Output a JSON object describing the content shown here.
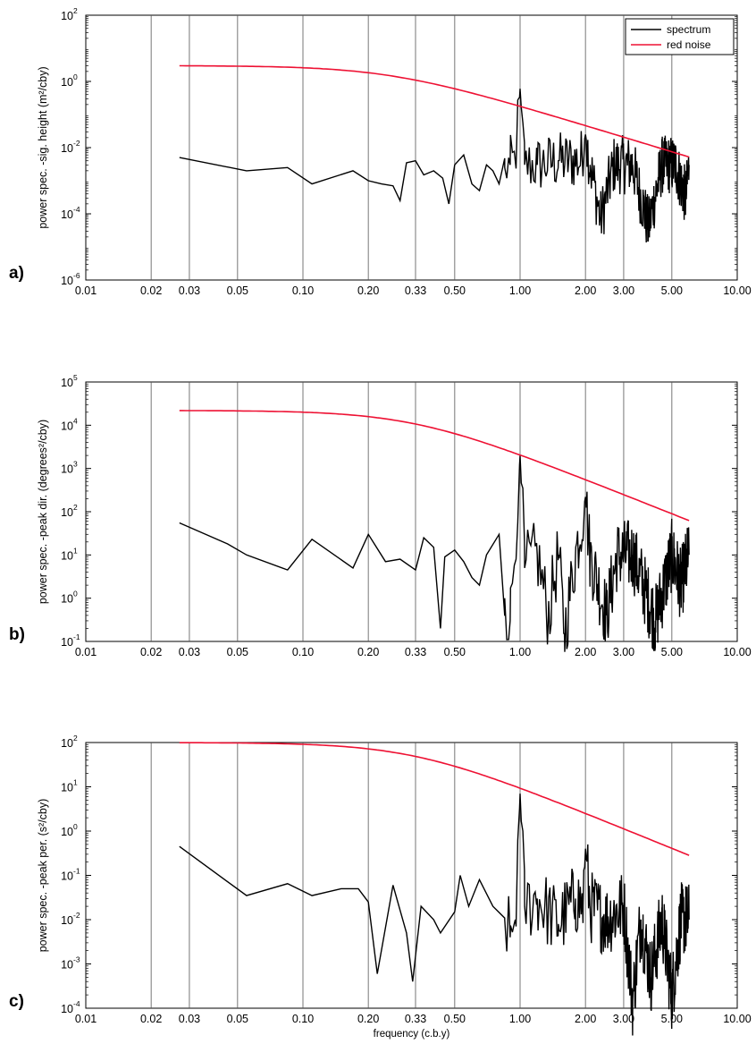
{
  "chart_data": [
    {
      "type": "line",
      "panel_label": "a)",
      "ylabel": "power spec. -sig. height (m²/cby)",
      "xlabel": "",
      "xscale": "log",
      "yscale": "log",
      "xlim": [
        0.01,
        10
      ],
      "ylim": [
        1e-06,
        100
      ],
      "x_ticks": [
        "0.01",
        "0.02",
        "0.03",
        "0.05",
        "0.10",
        "0.20",
        "0.33",
        "0.50",
        "1.00",
        "2.00",
        "3.00",
        "5.00",
        "10.00"
      ],
      "y_ticks": [
        {
          "base": "10",
          "exp": "-6"
        },
        {
          "base": "10",
          "exp": "-4"
        },
        {
          "base": "10",
          "exp": "-2"
        },
        {
          "base": "10",
          "exp": "0"
        },
        {
          "base": "10",
          "exp": "2"
        }
      ],
      "grid": "vertical lines at x ticks",
      "legend": {
        "position": "top-right",
        "entries": [
          "spectrum",
          "red noise"
        ]
      },
      "series": [
        {
          "name": "spectrum",
          "color": "#000000",
          "noise_amp": 0.9,
          "points": [
            [
              0.027,
              0.005
            ],
            [
              0.055,
              0.002
            ],
            [
              0.085,
              0.0025
            ],
            [
              0.11,
              0.0008
            ],
            [
              0.17,
              0.002
            ],
            [
              0.2,
              0.001
            ],
            [
              0.23,
              0.0008
            ],
            [
              0.26,
              0.0007
            ],
            [
              0.28,
              0.00025
            ],
            [
              0.3,
              0.0035
            ],
            [
              0.33,
              0.004
            ],
            [
              0.36,
              0.0015
            ],
            [
              0.4,
              0.002
            ],
            [
              0.44,
              0.0012
            ],
            [
              0.47,
              0.0002
            ],
            [
              0.5,
              0.003
            ],
            [
              0.55,
              0.006
            ],
            [
              0.6,
              0.0008
            ],
            [
              0.65,
              0.0005
            ],
            [
              0.7,
              0.003
            ],
            [
              0.75,
              0.002
            ],
            [
              0.8,
              0.0008
            ],
            [
              0.85,
              0.0025
            ],
            [
              0.9,
              0.003
            ],
            [
              0.95,
              0.004
            ],
            [
              1.0,
              0.6
            ],
            [
              1.05,
              0.003
            ],
            [
              1.2,
              0.003
            ],
            [
              1.5,
              0.004
            ],
            [
              1.9,
              0.004
            ],
            [
              2.0,
              0.025
            ],
            [
              2.1,
              0.003
            ],
            [
              2.35,
              7e-05
            ],
            [
              2.7,
              0.003
            ],
            [
              3.3,
              0.003
            ],
            [
              3.9,
              4e-05
            ],
            [
              4.5,
              0.003
            ],
            [
              5.2,
              0.003
            ],
            [
              5.8,
              0.0003
            ],
            [
              6.0,
              0.003
            ]
          ]
        },
        {
          "name": "red noise",
          "color": "#ee1133",
          "model": {
            "a": 3.0,
            "fc": 0.25,
            "n": 2.0
          }
        }
      ]
    },
    {
      "type": "line",
      "panel_label": "b)",
      "ylabel": "power spec. -peak dir. (degrees²/cby)",
      "xlabel": "",
      "xscale": "log",
      "yscale": "log",
      "xlim": [
        0.01,
        10
      ],
      "ylim": [
        0.1,
        100000
      ],
      "x_ticks": [
        "0.01",
        "0.02",
        "0.03",
        "0.05",
        "0.10",
        "0.20",
        "0.33",
        "0.50",
        "1.00",
        "2.00",
        "3.00",
        "5.00",
        "10.00"
      ],
      "y_ticks": [
        {
          "base": "10",
          "exp": "-1"
        },
        {
          "base": "10",
          "exp": "0"
        },
        {
          "base": "10",
          "exp": "1"
        },
        {
          "base": "10",
          "exp": "2"
        },
        {
          "base": "10",
          "exp": "3"
        },
        {
          "base": "10",
          "exp": "4"
        },
        {
          "base": "10",
          "exp": "5"
        }
      ],
      "grid": "vertical lines at x ticks",
      "series": [
        {
          "name": "spectrum",
          "color": "#000000",
          "noise_amp": 0.85,
          "points": [
            [
              0.027,
              55
            ],
            [
              0.045,
              18
            ],
            [
              0.055,
              10
            ],
            [
              0.085,
              4.5
            ],
            [
              0.11,
              23
            ],
            [
              0.17,
              5
            ],
            [
              0.2,
              30
            ],
            [
              0.24,
              7
            ],
            [
              0.28,
              8
            ],
            [
              0.33,
              4.5
            ],
            [
              0.36,
              25
            ],
            [
              0.4,
              15
            ],
            [
              0.43,
              0.2
            ],
            [
              0.45,
              9
            ],
            [
              0.5,
              13
            ],
            [
              0.55,
              7
            ],
            [
              0.6,
              3
            ],
            [
              0.65,
              2
            ],
            [
              0.7,
              10
            ],
            [
              0.8,
              30
            ],
            [
              0.85,
              1
            ],
            [
              0.9,
              0.3
            ],
            [
              1.0,
              2000
            ],
            [
              1.05,
              5
            ],
            [
              1.2,
              10
            ],
            [
              1.35,
              0.4
            ],
            [
              1.5,
              10
            ],
            [
              1.6,
              0.15
            ],
            [
              1.8,
              10
            ],
            [
              2.0,
              220
            ],
            [
              2.1,
              10
            ],
            [
              2.5,
              0.4
            ],
            [
              2.8,
              10
            ],
            [
              3.3,
              10
            ],
            [
              4.2,
              0.3
            ],
            [
              5.0,
              10
            ],
            [
              5.5,
              2
            ],
            [
              6.0,
              10
            ]
          ]
        },
        {
          "name": "red noise",
          "color": "#ee1133",
          "model": {
            "a": 22000,
            "fc": 0.32,
            "n": 2.0
          }
        }
      ]
    },
    {
      "type": "line",
      "panel_label": "c)",
      "ylabel": "power spec. -peak per. (s²/cby)",
      "xlabel": "frequency (c.b.y)",
      "xscale": "log",
      "yscale": "log",
      "xlim": [
        0.01,
        10
      ],
      "ylim": [
        0.0001,
        100
      ],
      "x_ticks": [
        "0.01",
        "0.02",
        "0.03",
        "0.05",
        "0.10",
        "0.20",
        "0.33",
        "0.50",
        "1.00",
        "2.00",
        "3.00",
        "5.00",
        "10.00"
      ],
      "y_ticks": [
        {
          "base": "10",
          "exp": "-4"
        },
        {
          "base": "10",
          "exp": "-3"
        },
        {
          "base": "10",
          "exp": "-2"
        },
        {
          "base": "10",
          "exp": "-1"
        },
        {
          "base": "10",
          "exp": "0"
        },
        {
          "base": "10",
          "exp": "1"
        },
        {
          "base": "10",
          "exp": "2"
        }
      ],
      "grid": "vertical lines at x ticks",
      "series": [
        {
          "name": "spectrum",
          "color": "#000000",
          "noise_amp": 0.85,
          "points": [
            [
              0.027,
              0.45
            ],
            [
              0.055,
              0.035
            ],
            [
              0.085,
              0.065
            ],
            [
              0.11,
              0.035
            ],
            [
              0.15,
              0.05
            ],
            [
              0.18,
              0.05
            ],
            [
              0.2,
              0.025
            ],
            [
              0.22,
              0.0006
            ],
            [
              0.26,
              0.06
            ],
            [
              0.3,
              0.005
            ],
            [
              0.32,
              0.0004
            ],
            [
              0.35,
              0.02
            ],
            [
              0.4,
              0.01
            ],
            [
              0.43,
              0.005
            ],
            [
              0.5,
              0.015
            ],
            [
              0.53,
              0.1
            ],
            [
              0.58,
              0.02
            ],
            [
              0.65,
              0.08
            ],
            [
              0.75,
              0.02
            ],
            [
              0.85,
              0.01
            ],
            [
              0.9,
              0.004
            ],
            [
              0.95,
              0.01
            ],
            [
              1.0,
              7
            ],
            [
              1.05,
              0.02
            ],
            [
              1.2,
              0.03
            ],
            [
              1.5,
              0.008
            ],
            [
              1.8,
              0.03
            ],
            [
              1.95,
              0.02
            ],
            [
              2.0,
              0.4
            ],
            [
              2.1,
              0.02
            ],
            [
              2.5,
              0.01
            ],
            [
              3.0,
              0.02
            ],
            [
              3.3,
              0.00015
            ],
            [
              3.6,
              0.01
            ],
            [
              4.0,
              0.0005
            ],
            [
              4.5,
              0.01
            ],
            [
              5.0,
              0.0002
            ],
            [
              5.5,
              0.01
            ],
            [
              6.0,
              0.01
            ]
          ]
        },
        {
          "name": "red noise",
          "color": "#ee1133",
          "model": {
            "a": 100,
            "fc": 0.32,
            "n": 2.0
          }
        }
      ]
    }
  ]
}
